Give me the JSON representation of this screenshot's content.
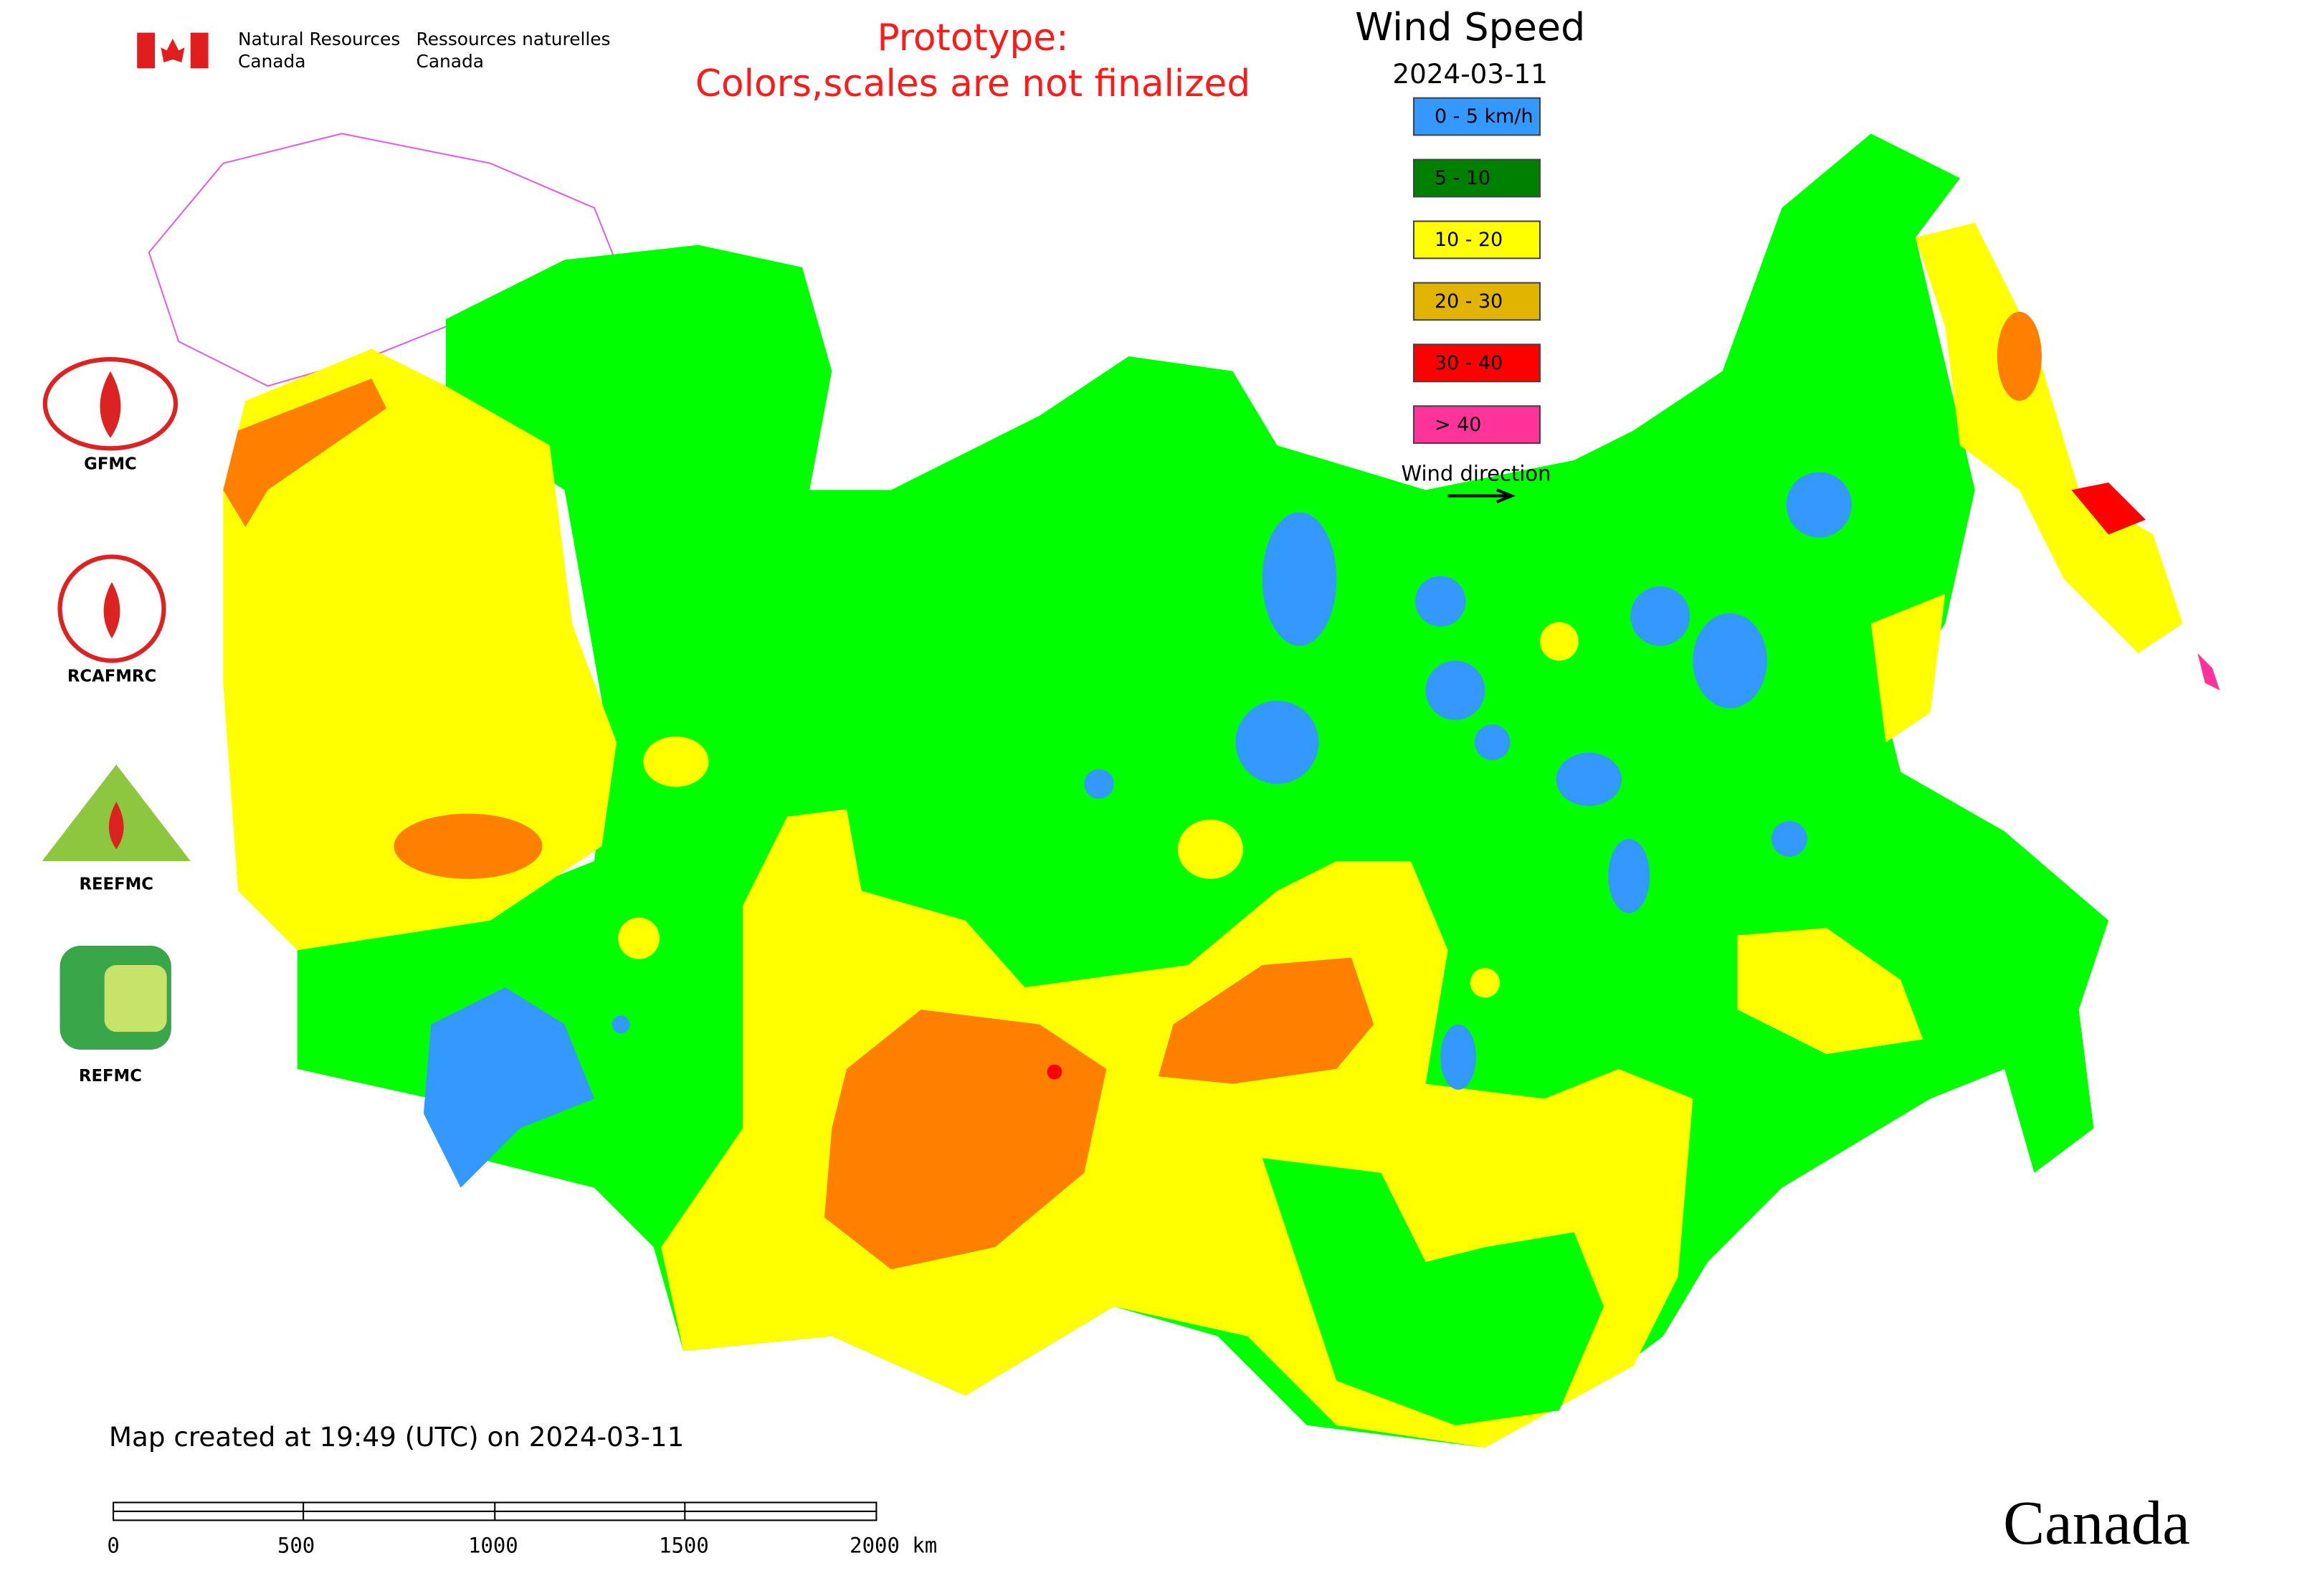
{
  "header": {
    "agency_en": [
      "Natural Resources",
      "Canada"
    ],
    "agency_fr": [
      "Ressources naturelles",
      "Canada"
    ]
  },
  "notice": [
    "Prototype:",
    "Colors,scales are not finalized"
  ],
  "legend": {
    "title": "Wind Speed",
    "date": "2024-03-11",
    "items": [
      {
        "label": "0 - 5 km/h",
        "color": "#3399ff"
      },
      {
        "label": "5 - 10",
        "color": "#008000"
      },
      {
        "label": "10 - 20",
        "color": "#ffff00"
      },
      {
        "label": "20 - 30",
        "color": "#e0b400"
      },
      {
        "label": "30 - 40",
        "color": "#ff0000"
      },
      {
        "label": "> 40",
        "color": "#ff3399"
      }
    ],
    "wind_direction": "Wind direction"
  },
  "logos": [
    "GFMC",
    "RCAFMRC",
    "REEFMC",
    "REFMC"
  ],
  "footer": {
    "created": "Map created at 19:49 (UTC) on 2024-03-11",
    "scale_ticks": [
      "0",
      "500",
      "1000",
      "1500",
      "2000 km"
    ],
    "wordmark": "Canada"
  }
}
